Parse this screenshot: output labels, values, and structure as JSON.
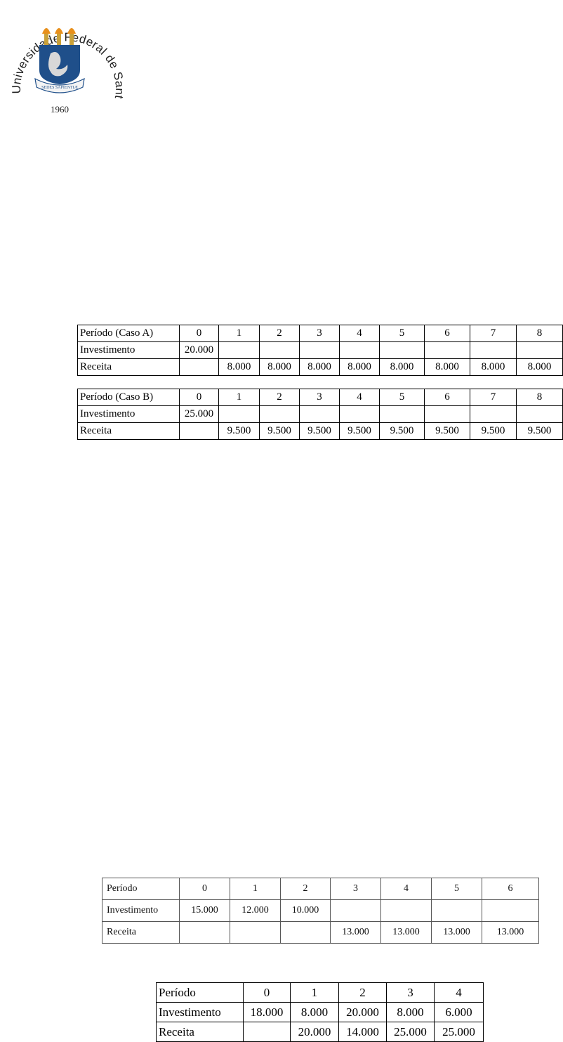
{
  "logo": {
    "arc_text": "Universidade Federal de Santa Maria",
    "motto": "SEDES SAPIENTIÆ",
    "year": "1960",
    "colors": {
      "shield": "#1f4f8a",
      "flame": "#e8901c",
      "torch": "#c9a13a"
    }
  },
  "tables": [
    {
      "header": [
        "Período (Caso A)",
        "0",
        "1",
        "2",
        "3",
        "4",
        "5",
        "6",
        "7",
        "8"
      ],
      "rows": [
        [
          "Investimento",
          "20.000",
          "",
          "",
          "",
          "",
          "",
          "",
          "",
          ""
        ],
        [
          "Receita",
          "",
          "8.000",
          "8.000",
          "8.000",
          "8.000",
          "8.000",
          "8.000",
          "8.000",
          "8.000"
        ]
      ]
    },
    {
      "header": [
        "Período (Caso B)",
        "0",
        "1",
        "2",
        "3",
        "4",
        "5",
        "6",
        "7",
        "8"
      ],
      "rows": [
        [
          "Investimento",
          "25.000",
          "",
          "",
          "",
          "",
          "",
          "",
          "",
          ""
        ],
        [
          "Receita",
          "",
          "9.500",
          "9.500",
          "9.500",
          "9.500",
          "9.500",
          "9.500",
          "9.500",
          "9.500"
        ]
      ]
    },
    {
      "header": [
        "Período",
        "0",
        "1",
        "2",
        "3",
        "4",
        "5",
        "6"
      ],
      "rows": [
        [
          "Investimento",
          "15.000",
          "12.000",
          "10.000",
          "",
          "",
          "",
          ""
        ],
        [
          "Receita",
          "",
          "",
          "",
          "13.000",
          "13.000",
          "13.000",
          "13.000"
        ]
      ]
    },
    {
      "header": [
        "Período",
        "0",
        "1",
        "2",
        "3",
        "4"
      ],
      "rows": [
        [
          "Investimento",
          "18.000",
          "8.000",
          "20.000",
          "8.000",
          "6.000"
        ],
        [
          "Receita",
          "",
          "20.000",
          "14.000",
          "25.000",
          "25.000"
        ]
      ]
    }
  ]
}
